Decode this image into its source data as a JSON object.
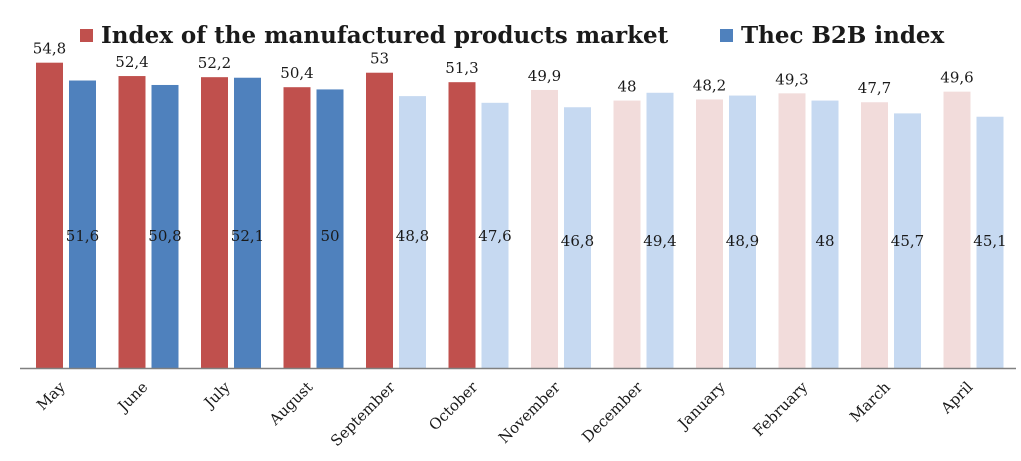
{
  "legend": {
    "items": [
      {
        "label": "Index of the manufactured products market",
        "color": "#C0504D"
      },
      {
        "label": "Thec B2B index",
        "color": "#4F81BD"
      }
    ]
  },
  "chart_data": {
    "type": "bar",
    "categories": [
      "May",
      "June",
      "July",
      "August",
      "September",
      "October",
      "November",
      "December",
      "January",
      "February",
      "March",
      "April"
    ],
    "series": [
      {
        "name": "Index of the manufactured products market",
        "values": [
          54.8,
          52.4,
          52.2,
          50.4,
          53,
          51.3,
          49.9,
          48,
          48.2,
          49.3,
          47.7,
          49.6
        ],
        "labels": [
          "54,8",
          "52,4",
          "52,2",
          "50,4",
          "53",
          "51,3",
          "49,9",
          "48",
          "48,2",
          "49,3",
          "47,7",
          "49,6"
        ],
        "color": "#C0504D",
        "faded_color": "#F2DCDB"
      },
      {
        "name": "Thec B2B index",
        "values": [
          51.6,
          50.8,
          52.1,
          50,
          48.8,
          47.6,
          46.8,
          49.4,
          48.9,
          48,
          45.7,
          45.1
        ],
        "labels": [
          "51,6",
          "50,8",
          "52,1",
          "50",
          "48,8",
          "47,6",
          "46,8",
          "49,4",
          "48,9",
          "48",
          "45,7",
          "45,1"
        ],
        "color": "#4F81BD",
        "faded_color": "#C6D9F1"
      }
    ],
    "highlighted": {
      "Index of the manufactured products market": 6,
      "Thec B2B index": 4
    },
    "ylim": [
      0,
      56
    ],
    "grid": false,
    "legend_position": "top"
  }
}
